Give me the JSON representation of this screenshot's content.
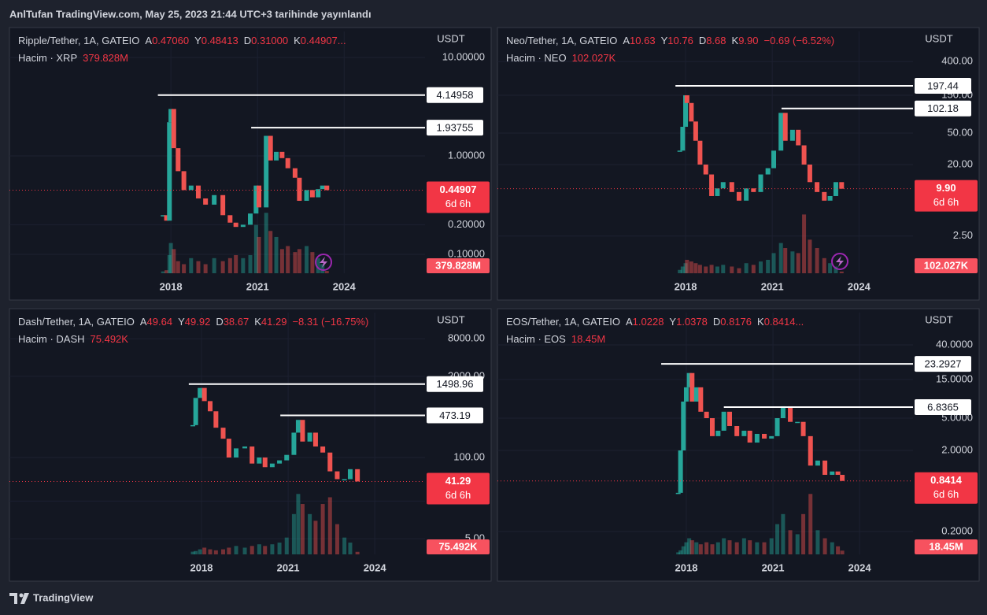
{
  "header": "AnlTufan TradingView.com, May 25, 2023 21:44 UTC+3 tarihinde yayınlandı",
  "footer": "TradingView",
  "chart_data": [
    {
      "type": "candlestick",
      "log": true,
      "grid": true,
      "up_color": "#26a69a",
      "down_color": "#ef5350",
      "legend": {
        "symbol": "Ripple/Tether, 1A, GATEIO",
        "ohlc": [
          {
            "key": "A",
            "value": "0.47060"
          },
          {
            "key": "Y",
            "value": "0.48413"
          },
          {
            "key": "D",
            "value": "0.31000"
          },
          {
            "key": "K",
            "value": "0.44907..."
          }
        ],
        "volume_name": "Hacim · XRP"
      },
      "currency": "USDT",
      "xlim": [
        2012.41,
        2026.8
      ],
      "xticks": [
        2018,
        2021,
        2024
      ],
      "ylim": [
        0.0643,
        18.37
      ],
      "yticks": [
        {
          "value": 10,
          "label": "10.00000"
        },
        {
          "value": 1,
          "label": "1.00000"
        },
        {
          "value": 0.2,
          "label": "0.20000"
        },
        {
          "value": 0.1,
          "label": "0.10000"
        }
      ],
      "x": [
        2017.73,
        2017.85,
        2017.95,
        2018.0,
        2018.1,
        2018.25,
        2018.45,
        2018.7,
        2018.95,
        2019.2,
        2019.5,
        2019.8,
        2020.05,
        2020.25,
        2020.5,
        2020.75,
        2020.95,
        2021.05,
        2021.3,
        2021.45,
        2021.65,
        2021.85,
        2022.05,
        2022.3,
        2022.45,
        2022.7,
        2022.9,
        2023.1,
        2023.25,
        2023.4
      ],
      "values": [
        0.25,
        0.22,
        2.2,
        3.0,
        1.2,
        0.7,
        0.45,
        0.5,
        0.37,
        0.32,
        0.4,
        0.25,
        0.21,
        0.19,
        0.2,
        0.26,
        0.5,
        0.3,
        1.6,
        0.9,
        1.1,
        0.95,
        0.75,
        0.6,
        0.35,
        0.45,
        0.38,
        0.46,
        0.5,
        0.44907
      ],
      "volume": [
        300000000,
        500000000,
        3000000000,
        5000000000,
        4000000000,
        2000000000,
        1500000000,
        2500000000,
        2000000000,
        1500000000,
        2500000000,
        2000000000,
        2500000000,
        3000000000,
        2500000000,
        3000000000,
        8000000000,
        6000000000,
        10000000000,
        7000000000,
        6000000000,
        4000000000,
        4500000000,
        3500000000,
        4000000000,
        4500000000,
        3500000000,
        2500000000,
        1500000000,
        379828000
      ],
      "volume_lim": [
        0,
        10000000000
      ],
      "levels": [
        {
          "x": 2017.55,
          "value": 4.14958
        },
        {
          "x": 2020.78,
          "value": 1.93755
        }
      ],
      "last": 0.44907,
      "countdown": "6d 6h",
      "volume_last": {
        "value": 379828000,
        "label": "379.828M"
      }
    },
    {
      "type": "candlestick",
      "log": true,
      "grid": true,
      "up_color": "#26a69a",
      "down_color": "#ef5350",
      "legend": {
        "symbol": "Neo/Tether, 1A, GATEIO",
        "ohlc": [
          {
            "key": "A",
            "value": "10.63"
          },
          {
            "key": "Y",
            "value": "10.76"
          },
          {
            "key": "D",
            "value": "8.68"
          },
          {
            "key": "K",
            "value": "9.90"
          }
        ],
        "change": "−0.69 (−6.52%)",
        "volume_name": "Hacim · NEO"
      },
      "currency": "USDT",
      "xlim": [
        2011.49,
        2025.87
      ],
      "xticks": [
        2018,
        2021,
        2024
      ],
      "ylim": [
        0.847,
        960
      ],
      "yticks": [
        {
          "value": 400,
          "label": "400.00"
        },
        {
          "value": 150,
          "label": "150.00"
        },
        {
          "value": 50,
          "label": "50.00"
        },
        {
          "value": 20,
          "label": "20.00"
        },
        {
          "value": 2.5,
          "label": "2.50"
        }
      ],
      "x": [
        2017.8,
        2017.9,
        2018.0,
        2018.05,
        2018.2,
        2018.35,
        2018.5,
        2018.7,
        2018.9,
        2019.1,
        2019.3,
        2019.6,
        2019.85,
        2020.1,
        2020.35,
        2020.6,
        2020.85,
        2021.05,
        2021.3,
        2021.45,
        2021.7,
        2021.9,
        2022.1,
        2022.3,
        2022.55,
        2022.8,
        2023.0,
        2023.2,
        2023.4
      ],
      "values": [
        30,
        60,
        150,
        120,
        70,
        40,
        20,
        15,
        8,
        10,
        12,
        9,
        7,
        10,
        9,
        15,
        18,
        30,
        90,
        40,
        55,
        35,
        20,
        12,
        9,
        7,
        8,
        12,
        9.9
      ],
      "volume": [
        200000,
        400000,
        600000,
        800000,
        700000,
        600000,
        500000,
        400000,
        500000,
        400000,
        500000,
        400000,
        300000,
        600000,
        500000,
        700000,
        800000,
        1200000,
        1800000,
        1500000,
        1300000,
        1200000,
        3500000,
        2000000,
        1500000,
        900000,
        600000,
        400000,
        102027
      ],
      "volume_lim": [
        0,
        3600000
      ],
      "levels": [
        {
          "x": 2017.65,
          "value": 197.44
        },
        {
          "x": 2021.32,
          "value": 102.18
        }
      ],
      "last": {
        "value": 9.9,
        "label": "9.90"
      },
      "countdown": "6d 6h",
      "volume_last": {
        "value": 102027,
        "label": "102.027K"
      }
    },
    {
      "type": "candlestick",
      "log": true,
      "grid": true,
      "up_color": "#26a69a",
      "down_color": "#ef5350",
      "legend": {
        "symbol": "Dash/Tether, 1A, GATEIO",
        "ohlc": [
          {
            "key": "A",
            "value": "49.64"
          },
          {
            "key": "Y",
            "value": "49.92"
          },
          {
            "key": "D",
            "value": "38.67"
          },
          {
            "key": "K",
            "value": "41.29"
          }
        ],
        "change": "−8.31 (−16.75%)",
        "volume_name": "Hacim · DASH"
      },
      "currency": "USDT",
      "xlim": [
        2011.35,
        2025.74
      ],
      "xticks": [
        2018,
        2021,
        2024
      ],
      "ylim": [
        2.81,
        20900
      ],
      "yticks": [
        {
          "value": 8000,
          "label": "8000.00"
        },
        {
          "value": 2000,
          "label": "2000.00"
        },
        {
          "value": 100,
          "label": "100.00"
        },
        {
          "value": 20,
          "label": "20.00"
        },
        {
          "value": 5,
          "label": "5.00"
        }
      ],
      "x": [
        2017.7,
        2017.8,
        2017.95,
        2018.1,
        2018.3,
        2018.5,
        2018.75,
        2018.95,
        2019.2,
        2019.5,
        2019.75,
        2020.0,
        2020.2,
        2020.45,
        2020.7,
        2020.95,
        2021.2,
        2021.35,
        2021.5,
        2021.75,
        2021.95,
        2022.2,
        2022.45,
        2022.7,
        2022.95,
        2023.15,
        2023.4
      ],
      "values": [
        330,
        900,
        1300,
        800,
        550,
        300,
        200,
        100,
        140,
        150,
        80,
        100,
        70,
        80,
        90,
        110,
        250,
        400,
        180,
        250,
        150,
        120,
        60,
        45,
        45,
        65,
        41.29
      ],
      "volume": [
        80000,
        100000,
        150000,
        200000,
        150000,
        120000,
        150000,
        200000,
        250000,
        200000,
        250000,
        300000,
        250000,
        300000,
        350000,
        500000,
        1200000,
        1800000,
        1500000,
        1200000,
        1000000,
        1500000,
        1700000,
        900000,
        500000,
        350000,
        75492
      ],
      "volume_lim": [
        0,
        1800000
      ],
      "levels": [
        {
          "x": 2017.56,
          "value": 1498.96
        },
        {
          "x": 2020.73,
          "value": 473.19
        }
      ],
      "last": 41.29,
      "countdown": "6d 6h",
      "volume_last": {
        "value": 75492,
        "label": "75.492K"
      }
    },
    {
      "type": "candlestick",
      "log": true,
      "grid": true,
      "up_color": "#26a69a",
      "down_color": "#ef5350",
      "legend": {
        "symbol": "EOS/Tether, 1A, GATEIO",
        "ohlc": [
          {
            "key": "A",
            "value": "1.0228"
          },
          {
            "key": "Y",
            "value": "1.0378"
          },
          {
            "key": "D",
            "value": "0.8176"
          },
          {
            "key": "K",
            "value": "0.8414..."
          }
        ],
        "volume_name": "Hacim · EOS"
      },
      "currency": "USDT",
      "xlim": [
        2011.46,
        2025.85
      ],
      "xticks": [
        2018,
        2021,
        2024
      ],
      "ylim": [
        0.1046,
        100
      ],
      "yticks": [
        {
          "value": 40,
          "label": "40.0000"
        },
        {
          "value": 15,
          "label": "15.0000"
        },
        {
          "value": 5,
          "label": "5.0000"
        },
        {
          "value": 2,
          "label": "2.0000"
        },
        {
          "value": 0.2,
          "label": "0.2000"
        }
      ],
      "x": [
        2017.72,
        2017.8,
        2017.9,
        2018.0,
        2018.1,
        2018.2,
        2018.35,
        2018.5,
        2018.7,
        2018.9,
        2019.1,
        2019.3,
        2019.5,
        2019.75,
        2020.0,
        2020.2,
        2020.45,
        2020.7,
        2020.95,
        2021.15,
        2021.35,
        2021.6,
        2021.85,
        2022.05,
        2022.3,
        2022.55,
        2022.8,
        2023.05,
        2023.25,
        2023.4
      ],
      "values": [
        0.6,
        2,
        8,
        12,
        18,
        8,
        12,
        6,
        5,
        3,
        3.5,
        6,
        4,
        3,
        3.5,
        2.5,
        3.2,
        2.8,
        3,
        5,
        7,
        4.5,
        4.5,
        3,
        1.3,
        1.5,
        1,
        1.1,
        1.0,
        0.8414
      ],
      "volume": [
        10000000,
        20000000,
        40000000,
        60000000,
        80000000,
        70000000,
        60000000,
        50000000,
        60000000,
        50000000,
        60000000,
        80000000,
        70000000,
        60000000,
        80000000,
        70000000,
        60000000,
        60000000,
        80000000,
        150000000,
        200000000,
        120000000,
        100000000,
        200000000,
        300000000,
        120000000,
        80000000,
        60000000,
        40000000,
        18450000
      ],
      "volume_lim": [
        0,
        300000000
      ],
      "levels": [
        {
          "x": 2017.13,
          "value": 23.2927
        },
        {
          "x": 2019.3,
          "value": 6.8365
        }
      ],
      "last": 0.8414,
      "countdown": "6d 6h",
      "volume_last": {
        "value": 18450000,
        "label": "18.45M"
      }
    }
  ]
}
